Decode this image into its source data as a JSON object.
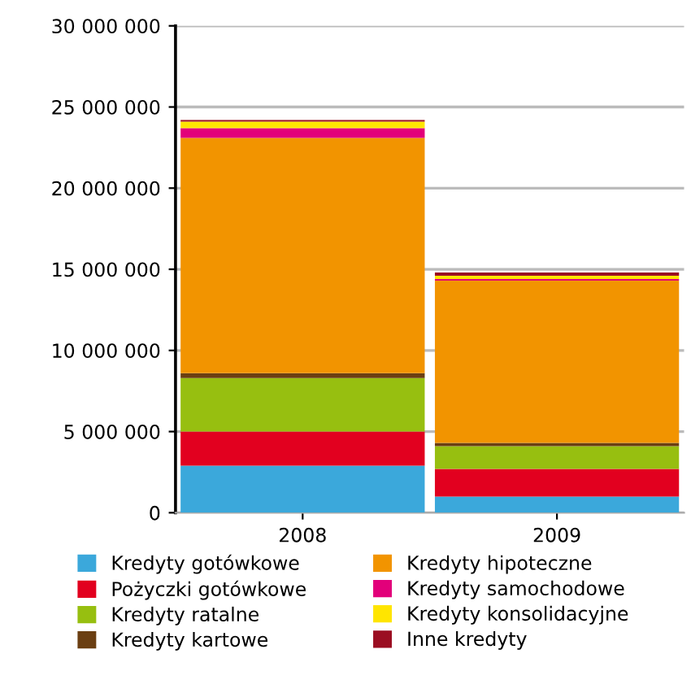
{
  "chart_data": {
    "type": "bar",
    "stacked": true,
    "categories": [
      "2008",
      "2009"
    ],
    "series": [
      {
        "name": "Kredyty gotówkowe",
        "color": "#3ba8db",
        "values": [
          2900000,
          1000000
        ]
      },
      {
        "name": "Pożyczki gotówkowe",
        "color": "#e2001f",
        "values": [
          2100000,
          1700000
        ]
      },
      {
        "name": "Kredyty ratalne",
        "color": "#97bf10",
        "values": [
          3300000,
          1400000
        ]
      },
      {
        "name": "Kredyty kartowe",
        "color": "#6b3f12",
        "values": [
          300000,
          200000
        ]
      },
      {
        "name": "Kredyty hipoteczne",
        "color": "#f29400",
        "values": [
          14500000,
          10000000
        ]
      },
      {
        "name": "Kredyty samochodowe",
        "color": "#e2007a",
        "values": [
          600000,
          100000
        ]
      },
      {
        "name": "Kredyty konsolidacyjne",
        "color": "#ffe500",
        "values": [
          400000,
          200000
        ]
      },
      {
        "name": "Inne kredyty",
        "color": "#9b0e22",
        "values": [
          100000,
          200000
        ]
      }
    ],
    "ylim": [
      0,
      30000000
    ],
    "yticks": [
      0,
      {
        "value": 5000000,
        "label": "5 000 000"
      },
      {
        "value": 10000000,
        "label": "10 000 000"
      },
      {
        "value": 15000000,
        "label": "15 000 000"
      },
      {
        "value": 20000000,
        "label": "20 000 000"
      },
      {
        "value": 25000000,
        "label": "25 000 000"
      },
      {
        "value": 30000000,
        "label": "30 000 000"
      }
    ],
    "grid": "y",
    "legend": "bottom"
  }
}
